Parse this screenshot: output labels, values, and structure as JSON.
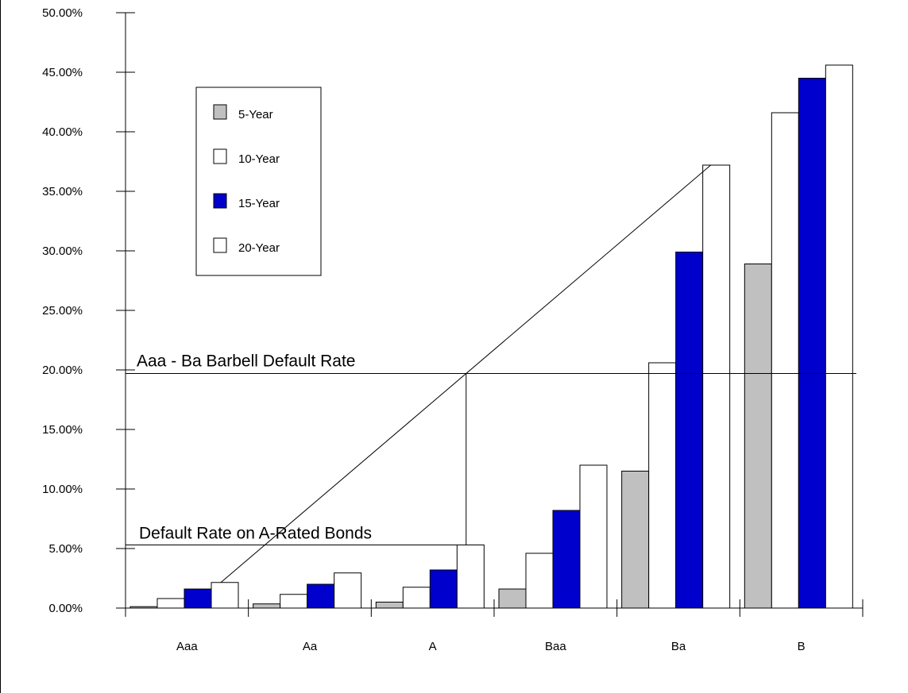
{
  "chart_data": {
    "type": "bar",
    "categories": [
      "Aaa",
      "Aa",
      "A",
      "Baa",
      "Ba",
      "B"
    ],
    "series": [
      {
        "name": "5-Year",
        "color": "#c0c0c0",
        "values": [
          0.12,
          0.35,
          0.5,
          1.6,
          11.5,
          28.9
        ]
      },
      {
        "name": "10-Year",
        "color": "#ffffff",
        "values": [
          0.8,
          1.15,
          1.75,
          4.6,
          20.6,
          41.6
        ]
      },
      {
        "name": "15-Year",
        "color": "#0000cc",
        "values": [
          1.6,
          2.0,
          3.2,
          8.2,
          29.9,
          44.5
        ]
      },
      {
        "name": "20-Year",
        "color": "#ffffff",
        "values": [
          2.15,
          2.95,
          5.3,
          12.0,
          37.2,
          45.6
        ]
      }
    ],
    "ylim": [
      0,
      50
    ],
    "yticks": [
      "0.00%",
      "5.00%",
      "10.00%",
      "15.00%",
      "20.00%",
      "25.00%",
      "30.00%",
      "35.00%",
      "40.00%",
      "45.00%",
      "50.00%"
    ],
    "ytick_values": [
      0,
      5,
      10,
      15,
      20,
      25,
      30,
      35,
      40,
      45,
      50
    ],
    "title": "",
    "xlabel": "",
    "ylabel": "",
    "grid": false,
    "legend_position": "top-left",
    "annotations": {
      "barbell_label": "Aaa - Ba Barbell Default Rate",
      "barbell_value": 19.7,
      "a_rated_label": "Default Rate on A-Rated Bonds",
      "a_rated_value": 5.3,
      "diagonal_line": {
        "from": {
          "category": "Aaa",
          "value": 2.15
        },
        "to": {
          "category": "Ba",
          "value": 37.2
        }
      }
    }
  }
}
